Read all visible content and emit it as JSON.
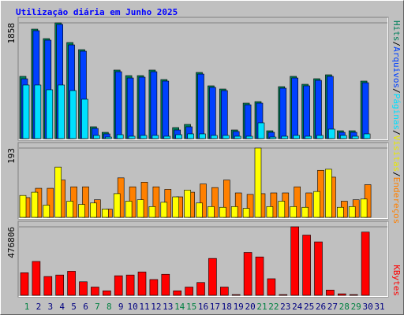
{
  "chart_data": {
    "type": "bar",
    "title": "Utilização diária em Junho 2025",
    "categories": [
      "1",
      "2",
      "3",
      "4",
      "5",
      "6",
      "7",
      "8",
      "9",
      "10",
      "11",
      "12",
      "13",
      "14",
      "15",
      "16",
      "17",
      "18",
      "19",
      "20",
      "21",
      "22",
      "23",
      "24",
      "25",
      "26",
      "27",
      "28",
      "29",
      "30",
      "31"
    ],
    "category_colors": [
      "#008040",
      "#000080",
      "#000080",
      "#000080",
      "#000080",
      "#000080",
      "#008040",
      "#008040",
      "#000080",
      "#000080",
      "#000080",
      "#000080",
      "#000080",
      "#008040",
      "#008040",
      "#000080",
      "#000080",
      "#000080",
      "#000080",
      "#000080",
      "#008040",
      "#008040",
      "#000080",
      "#000080",
      "#000080",
      "#000080",
      "#000080",
      "#008040",
      "#008040",
      "#000080",
      "#000080"
    ],
    "separator": "/",
    "panels": [
      {
        "ylim": [
          0,
          1858
        ],
        "yticks": [
          1858
        ],
        "series": [
          {
            "name": "Hits",
            "color": "#00805c",
            "values": [
              999,
              1757,
              1605,
              1858,
              1542,
              1428,
              190,
              101,
              1100,
              1011,
              1011,
              1100,
              948,
              177,
              228,
              1062,
              847,
              796,
              139,
              569,
              594,
              126,
              834,
              999,
              872,
              961,
              1024,
              126,
              126,
              923,
              null
            ]
          },
          {
            "name": "Arquivos",
            "color": "#0040ff",
            "values": [
              960,
              1732,
              1580,
              1833,
              1504,
              1403,
              164,
              76,
              1074,
              973,
              986,
              1074,
              923,
              139,
              190,
              1036,
              822,
              771,
              114,
              543,
              569,
              101,
              809,
              973,
              847,
              935,
              999,
              101,
              101,
              897,
              null
            ]
          },
          {
            "name": "Páginas",
            "color": "#00e0ff",
            "values": [
              860,
              860,
              784,
              860,
              771,
              632,
              51,
              25,
              63,
              38,
              51,
              51,
              38,
              63,
              76,
              76,
              51,
              51,
              38,
              38,
              253,
              25,
              38,
              51,
              38,
              51,
              152,
              51,
              38,
              76,
              null
            ]
          }
        ]
      },
      {
        "ylim": [
          0,
          193
        ],
        "yticks": [
          193
        ],
        "series": [
          {
            "name": "Endereços",
            "color": "#ff8000",
            "values": [
              55,
              81,
              81,
              104,
              85,
              85,
              49,
              23,
              110,
              85,
              98,
              85,
              78,
              57,
              70,
              93,
              83,
              104,
              68,
              64,
              66,
              68,
              68,
              85,
              68,
              131,
              112,
              45,
              49,
              91,
              null
            ]
          },
          {
            "name": "Visitas",
            "color": "#ffff00",
            "values": [
              61,
              70,
              34,
              140,
              45,
              36,
              40,
              23,
              66,
              45,
              49,
              30,
              42,
              57,
              76,
              40,
              30,
              28,
              30,
              25,
              193,
              30,
              45,
              30,
              28,
              72,
              134,
              28,
              30,
              51,
              null
            ]
          }
        ]
      },
      {
        "ylim": [
          0,
          476806
        ],
        "yticks": [
          476806
        ],
        "series": [
          {
            "name": "KBytes",
            "color": "#ff0000",
            "values": [
              157200,
              235800,
              131000,
              141500,
              167700,
              94300,
              57600,
              31400,
              136200,
              141500,
              162400,
              110000,
              146700,
              31400,
              57600,
              89100,
              256800,
              57600,
              5200,
              298700,
              267200,
              115300,
              5200,
              476806,
              419200,
              372000,
              36700,
              10500,
              5200,
              440200,
              null
            ]
          }
        ]
      }
    ]
  }
}
